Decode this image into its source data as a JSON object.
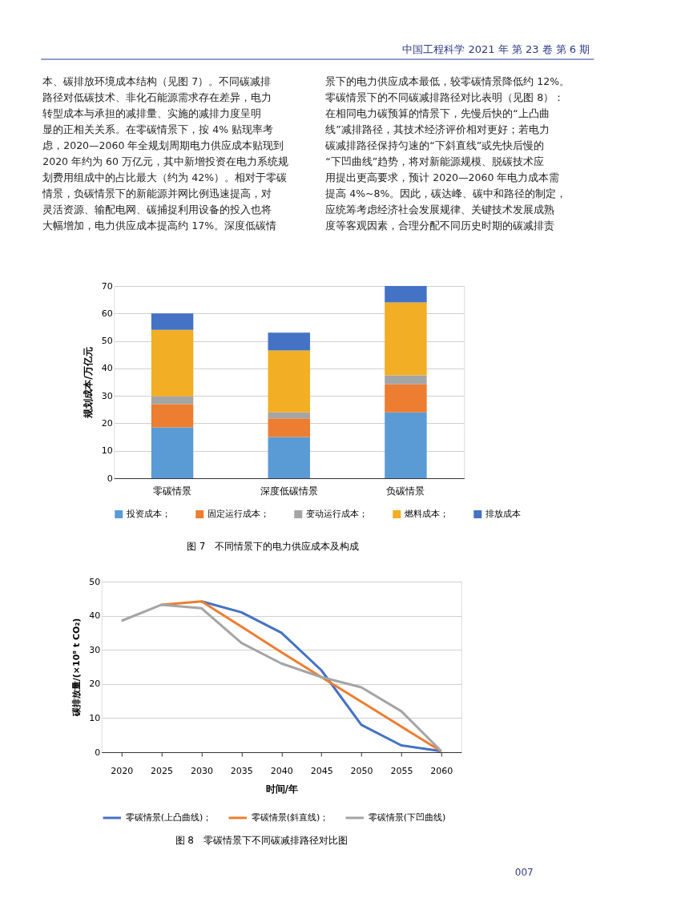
{
  "chart_data": [
    {
      "type": "bar",
      "stacked": true,
      "ylabel": "规划成本/万亿元",
      "categories": [
        "零碳情景",
        "深度低碳情景",
        "负碳情景"
      ],
      "series": [
        {
          "name": "投资成本；",
          "color": "#5b9bd5",
          "values": [
            18.5,
            15,
            24
          ]
        },
        {
          "name": "固定运行成本；",
          "color": "#ed7d31",
          "values": [
            8.5,
            6.8,
            10.2
          ]
        },
        {
          "name": "变动运行成本；",
          "color": "#a5a5a5",
          "values": [
            2.8,
            2.2,
            3.3
          ]
        },
        {
          "name": "燃料成本；",
          "color": "#f2ae24",
          "values": [
            24.2,
            22.5,
            26.5
          ]
        },
        {
          "name": "排放成本",
          "color": "#4472c4",
          "values": [
            6,
            6.5,
            6
          ]
        }
      ],
      "ylim": [
        0,
        70
      ],
      "yticks": [
        0,
        10,
        20,
        30,
        40,
        50,
        60,
        70
      ],
      "grid": "y",
      "legend": "bottom",
      "annotations": [
        "中国工程科学 2021 年 第 23 卷 第 6 期",
        "本、碳排放环境成本结构（见图 7）。不同碳减排",
        "路径对低碳技术、非化石能源需求存在差异，电力",
        "转型成本与承担的减排量、实施的减排力度呈明",
        "显的正相关关系。在零碳情景下，按 4% 贴现率考",
        "虑，2020—2060 年全规划周期电力供应成本贴现到",
        "2020 年约为 60 万亿元，其中新增投资在电力系统规",
        "划费用组成中的占比最大（约为 42%）。相对于零碳",
        "情景，负碳情景下的新能源并网比例迅速提高，对",
        "灵活资源、输配电网、碳捕捉利用设备的投入也将",
        "大幅增加，电力供应成本提高约 17%。深度低碳情",
        "景下的电力供应成本最低，较零碳情景降低约 12%。",
        "　　零碳情景下的不同碳减排路径对比表明（见图 8）：",
        "在相同电力碳预算的情景下，先慢后快的“上凸曲",
        "线”减排路径，其技术经济评价相对更好；若电力",
        "碳减排路径保持匀速的“下斜直线”或先快后慢的",
        "“下凹曲线”趋势，将对新能源规模、脱碳技术应",
        "用提出更高要求，预计 2020—2060 年电力成本需",
        "提高 4%~8%。因此，碳达峰、碳中和路径的制定，",
        "应统筹考虑经济社会发展规律、关键技术发展成熟",
        "度等客观因素，合理分配不同历史时期的碳减排责",
        "图 7　不同情景下的电力供应成本及构成"
      ]
    },
    {
      "type": "line",
      "xlabel": "时间/年",
      "ylabel": "碳排放量/(×10⁸ t CO₂)",
      "x": [
        2020,
        2025,
        2030,
        2035,
        2040,
        2045,
        2050,
        2055,
        2060
      ],
      "series": [
        {
          "name": "零碳情景(上凸曲线)；",
          "color": "#4472c4",
          "values": [
            null,
            null,
            44.2,
            41,
            35,
            24,
            8,
            2,
            0.3
          ]
        },
        {
          "name": "零碳情景(斜直线)；",
          "color": "#ed7d31",
          "values": [
            null,
            43.2,
            44.2,
            36.8,
            29.3,
            22,
            14.8,
            7.5,
            0.3
          ]
        },
        {
          "name": "零碳情景(下凹曲线)",
          "color": "#a5a5a5",
          "values": [
            38.5,
            43.2,
            42.2,
            32,
            26,
            22,
            19,
            12,
            0.3
          ]
        }
      ],
      "xlim": [
        2017.5,
        2062.5
      ],
      "xticks": [
        2020,
        2025,
        2030,
        2035,
        2040,
        2045,
        2050,
        2055,
        2060
      ],
      "ylim": [
        0,
        50
      ],
      "yticks": [
        0,
        10,
        20,
        30,
        40,
        50
      ],
      "grid": "y",
      "legend": "bottom",
      "line_style": "solid",
      "annotations": [
        "图 8　零碳情景下不同碳减排路径对比图",
        "007"
      ]
    }
  ]
}
